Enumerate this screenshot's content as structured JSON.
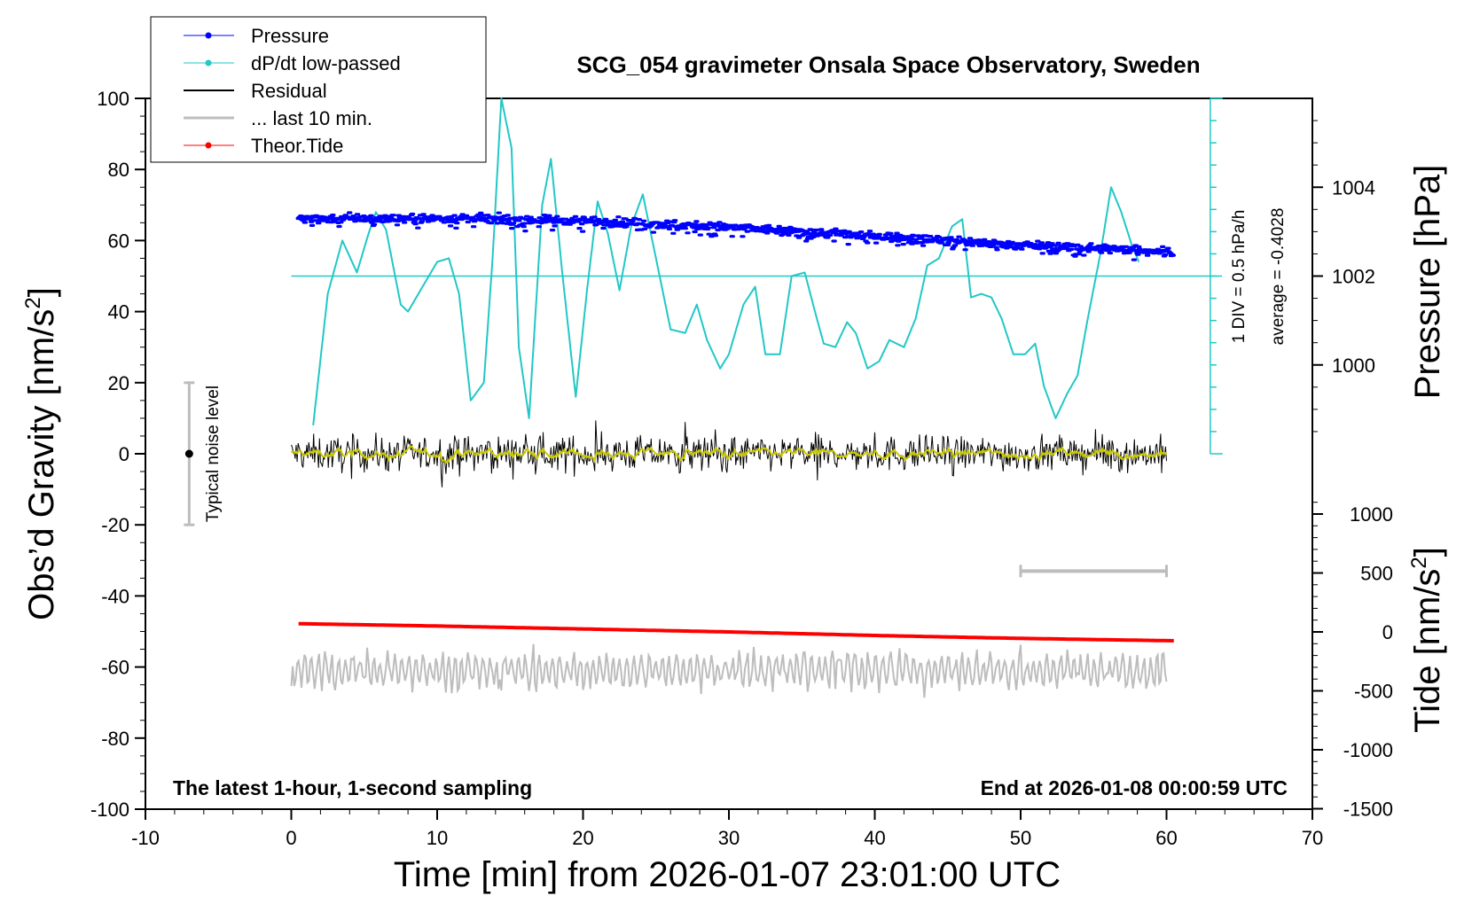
{
  "chart_data": {
    "type": "line",
    "title": "SCG_054 gravimeter Onsala Space Observatory, Sweden",
    "xlabel": "Time [min] from 2026-01-07 23:01:00 UTC",
    "xlim": [
      -10,
      70
    ],
    "xticks": [
      "-10",
      "0",
      "10",
      "20",
      "30",
      "40",
      "50",
      "60",
      "70"
    ],
    "ylabel_left": "Obs’d Gravity [nm/s",
    "ylabel_left_sup": "2",
    "ylabel_left_close": "]",
    "ylim_left": [
      -100,
      100
    ],
    "yticks_left": [
      "100",
      "80",
      "60",
      "40",
      "20",
      "0",
      "-20",
      "-40",
      "-60",
      "-80",
      "-100"
    ],
    "ylabel_pressure": "Pressure [hPa]",
    "yticks_pressure": [
      "1004",
      "1002",
      "1000"
    ],
    "pressure_axis": {
      "p_ref": 1002,
      "y_ref": 50,
      "units_per_hpa": 12.5
    },
    "ylabel_tide": "Tide [nm/s",
    "ylabel_tide_sup": "2",
    "ylabel_tide_close": "]",
    "yticks_tide": [
      "1000",
      "500",
      "0",
      "-500",
      "-1000",
      "-1500"
    ],
    "legend": [
      "Pressure",
      "dP/dt low-passed",
      "Residual",
      "... last 10 min.",
      "Theor.Tide"
    ],
    "legend_position": "top-left",
    "colors": {
      "pressure": "#0000ff",
      "dpdt": "#22c7c7",
      "residual": "#000000",
      "last10": "#bdbdbd",
      "tide": "#ff0000",
      "smooth": "#c8c800"
    },
    "annotations": {
      "noise": "Typical noise level",
      "div": "1 DIV = 0.5 hPa/h",
      "average": "average = -0.4028",
      "bottom_left": "The latest 1-hour, 1-second sampling",
      "bottom_right": "End at 2026-01-08 00:00:59 UTC"
    },
    "noise_bar": {
      "x": -7,
      "y_low": -20,
      "y_high": 20,
      "y_mid": 0
    },
    "dpdt_axis": {
      "x": 63,
      "zero_y": 50,
      "bottom_y": 0,
      "top_y": 100
    },
    "last10_bar": {
      "x_start": 50,
      "x_end": 60,
      "y": -33
    },
    "series": [
      {
        "name": "Pressure",
        "unit": "hPa",
        "x": [
          0.5,
          10,
          20,
          30,
          40,
          50,
          60.5
        ],
        "y": [
          1003.3,
          1003.3,
          1003.25,
          1003.1,
          1002.9,
          1002.7,
          1002.55
        ]
      },
      {
        "name": "dP/dt low-passed",
        "unit": "gravity-axis",
        "x": [
          1.5,
          2.5,
          3.5,
          4.5,
          5.3,
          5.8,
          6.5,
          7.5,
          8,
          9,
          10,
          10.8,
          11.5,
          12.3,
          13.2,
          13.8,
          14.4,
          15.1,
          15.6,
          16.3,
          17.2,
          17.8,
          18.6,
          19.5,
          20.3,
          21.0,
          21.7,
          22.5,
          23.3,
          24.1,
          25,
          26,
          27,
          27.8,
          28.5,
          29.4,
          30,
          31,
          31.8,
          32.5,
          33.5,
          34.3,
          35.2,
          35.9,
          36.5,
          37.3,
          38.1,
          38.7,
          39.5,
          40.3,
          41,
          42,
          42.8,
          43.6,
          44.4,
          45.3,
          46.0,
          46.6,
          47.3,
          48.0,
          48.7,
          49.5,
          50.3,
          51.0,
          51.6,
          52.4,
          53.2,
          53.9,
          54.6,
          55.5,
          56.2,
          56.9,
          57.6,
          58.1
        ],
        "y": [
          8,
          45,
          60,
          51,
          62,
          68,
          63,
          42,
          40,
          47,
          54,
          55,
          45,
          15,
          20,
          55,
          100,
          86,
          30,
          10,
          70,
          83,
          50,
          16,
          47,
          71,
          62,
          46,
          64,
          73,
          55,
          35,
          34,
          42,
          32,
          24,
          28,
          42,
          47,
          28,
          28,
          50,
          51,
          40,
          31,
          30,
          37,
          34,
          24,
          26,
          32,
          30,
          38,
          53,
          55,
          64,
          66,
          44,
          45,
          44,
          38,
          28,
          28,
          31,
          19,
          10,
          17,
          22,
          38,
          57,
          75,
          68,
          59,
          54
        ]
      },
      {
        "name": "Theor.Tide",
        "unit": "nm/s2",
        "x": [
          0.5,
          10,
          20,
          30,
          40,
          50,
          60.5
        ],
        "y": [
          70,
          50,
          25,
          0,
          -30,
          -55,
          -75
        ]
      }
    ]
  }
}
